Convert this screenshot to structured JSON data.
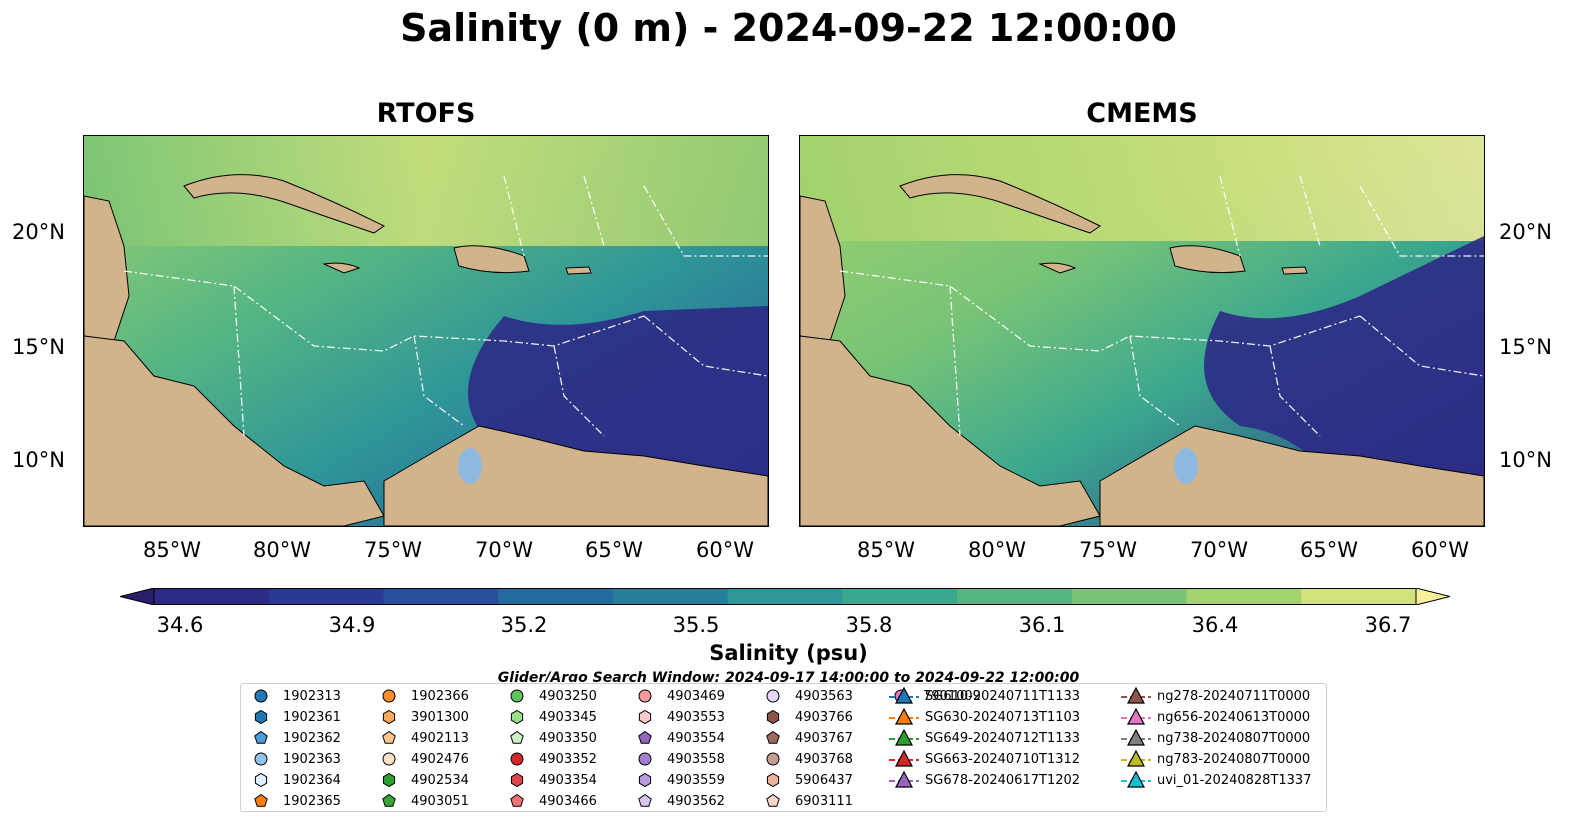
{
  "title": "Salinity (0 m) - 2024-09-22 12:00:00",
  "panels": [
    {
      "title": "RTOFS"
    },
    {
      "title": "CMEMS"
    }
  ],
  "axes": {
    "lon_ticks": [
      "85°W",
      "80°W",
      "75°W",
      "70°W",
      "65°W",
      "60°W"
    ],
    "lat_ticks": [
      "20°N",
      "15°N",
      "10°N"
    ]
  },
  "colorbar": {
    "label": "Salinity (psu)",
    "ticks": [
      "34.6",
      "34.9",
      "35.2",
      "35.5",
      "35.8",
      "36.1",
      "36.4",
      "36.7"
    ],
    "range": [
      34.6,
      36.7
    ],
    "colors": [
      "#2a1d6b",
      "#2c2a85",
      "#2a3a94",
      "#26509b",
      "#236a9e",
      "#257f9c",
      "#2e9598",
      "#3aa78f",
      "#55b683",
      "#78c476",
      "#a3d26e",
      "#d3e27a",
      "#f6ee9a"
    ]
  },
  "search_window": "Glider/Argo Search Window: 2024-09-17 14:00:00 to 2024-09-22 12:00:00",
  "land_color": "#d2b48c",
  "legend": {
    "argo_columns": [
      [
        {
          "id": "1902313",
          "marker": "circle",
          "color": "#1f77b4"
        },
        {
          "id": "1902361",
          "marker": "hexagon",
          "color": "#1f77b4"
        },
        {
          "id": "1902362",
          "marker": "pentagon",
          "color": "#4a9bd6"
        },
        {
          "id": "1902363",
          "marker": "circle",
          "color": "#8fc3ec"
        },
        {
          "id": "1902364",
          "marker": "hexagon",
          "color": "#dff0ff"
        },
        {
          "id": "1902365",
          "marker": "pentagon",
          "color": "#ff7f0e"
        }
      ],
      [
        {
          "id": "1902366",
          "marker": "circle",
          "color": "#ff8c2a"
        },
        {
          "id": "3901300",
          "marker": "hexagon",
          "color": "#ffa95e"
        },
        {
          "id": "4902113",
          "marker": "pentagon",
          "color": "#ffc48f"
        },
        {
          "id": "4902476",
          "marker": "circle",
          "color": "#ffe3c4"
        },
        {
          "id": "4902534",
          "marker": "hexagon",
          "color": "#2ca02c"
        },
        {
          "id": "4903051",
          "marker": "pentagon",
          "color": "#33a833"
        }
      ],
      [
        {
          "id": "4903250",
          "marker": "circle",
          "color": "#5ec45e"
        },
        {
          "id": "4903345",
          "marker": "hexagon",
          "color": "#98df8a"
        },
        {
          "id": "4903350",
          "marker": "pentagon",
          "color": "#cdf2c4"
        },
        {
          "id": "4903352",
          "marker": "circle",
          "color": "#d62728"
        },
        {
          "id": "4903354",
          "marker": "hexagon",
          "color": "#e0454a"
        },
        {
          "id": "4903466",
          "marker": "pentagon",
          "color": "#f07377"
        }
      ],
      [
        {
          "id": "4903469",
          "marker": "circle",
          "color": "#f59a9c"
        },
        {
          "id": "4903553",
          "marker": "hexagon",
          "color": "#fccaca"
        },
        {
          "id": "4903554",
          "marker": "pentagon",
          "color": "#9467bd"
        },
        {
          "id": "4903558",
          "marker": "circle",
          "color": "#a27fd0"
        },
        {
          "id": "4903559",
          "marker": "hexagon",
          "color": "#b89be0"
        },
        {
          "id": "4903562",
          "marker": "pentagon",
          "color": "#d9c6f2"
        }
      ],
      [
        {
          "id": "4903563",
          "marker": "circle",
          "color": "#e6d6fa"
        },
        {
          "id": "4903766",
          "marker": "hexagon",
          "color": "#8c564b"
        },
        {
          "id": "4903767",
          "marker": "pentagon",
          "color": "#9d6a5e"
        },
        {
          "id": "4903768",
          "marker": "circle",
          "color": "#c49c94"
        },
        {
          "id": "5906437",
          "marker": "hexagon",
          "color": "#ebb39f"
        },
        {
          "id": "6903111",
          "marker": "pentagon",
          "color": "#fbd7c9"
        }
      ],
      [
        {
          "id": "7901009",
          "marker": "circle",
          "color": "#e377c2"
        }
      ]
    ],
    "gliders": [
      {
        "id": "SG610-20240711T1133",
        "color": "#1f77b4"
      },
      {
        "id": "SG630-20240713T1103",
        "color": "#ff7f0e"
      },
      {
        "id": "SG649-20240712T1133",
        "color": "#2ca02c"
      },
      {
        "id": "SG663-20240710T1312",
        "color": "#d62728"
      },
      {
        "id": "SG678-20240617T1202",
        "color": "#9467bd"
      },
      {
        "id": "ng278-20240711T0000",
        "color": "#8c564b"
      },
      {
        "id": "ng656-20240613T0000",
        "color": "#e377c2"
      },
      {
        "id": "ng738-20240807T0000",
        "color": "#7f7f7f"
      },
      {
        "id": "ng783-20240807T0000",
        "color": "#bcbd22"
      },
      {
        "id": "uvi_01-20240828T1337",
        "color": "#17becf"
      }
    ]
  }
}
